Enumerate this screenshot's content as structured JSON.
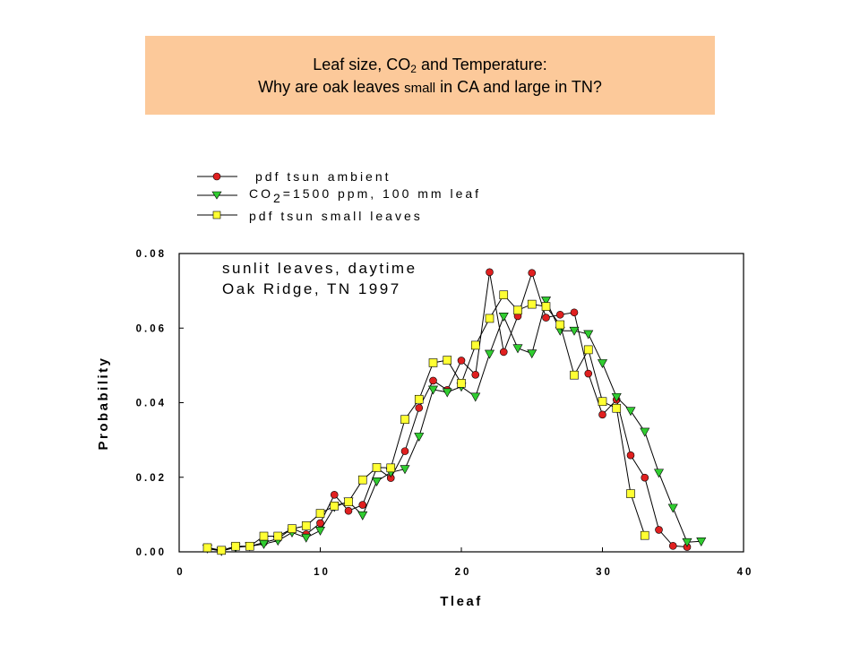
{
  "header": {
    "title_part1": "Leaf size, CO",
    "title_sub": "2",
    "title_part2": " and Temperature:",
    "subtitle_part1": "Why are oak leaves ",
    "subtitle_small": "small",
    "subtitle_part2": " in CA and large in TN?",
    "background": "#fcc99a"
  },
  "chart_data": {
    "type": "line",
    "xlabel": "Tleaf",
    "ylabel": "Probability",
    "xlim": [
      0,
      40
    ],
    "ylim": [
      0,
      0.08
    ],
    "xticks": [
      "0",
      "10",
      "20",
      "30",
      "40"
    ],
    "yticks": [
      "0.00",
      "0.02",
      "0.04",
      "0.06",
      "0.08"
    ],
    "grid": false,
    "legend_placement": "above plot",
    "annotations": [
      "sunlit leaves, daytime",
      "Oak Ridge, TN 1997"
    ],
    "series": [
      {
        "name": "pdf tsun ambient",
        "marker": "circle",
        "color": "#e02020",
        "x": [
          2,
          3,
          4,
          5,
          6,
          7,
          8,
          9,
          10,
          11,
          12,
          13,
          14,
          15,
          16,
          17,
          18,
          19,
          20,
          21,
          22,
          23,
          24,
          25,
          26,
          27,
          28,
          29,
          30,
          31,
          32,
          33,
          34,
          35,
          36
        ],
        "y": [
          0.0012,
          0.0003,
          0.0014,
          0.0015,
          0.0025,
          0.0035,
          0.0063,
          0.0047,
          0.0077,
          0.0153,
          0.011,
          0.0126,
          0.0225,
          0.0198,
          0.027,
          0.0386,
          0.0459,
          0.0434,
          0.0513,
          0.0475,
          0.075,
          0.0536,
          0.0632,
          0.0748,
          0.0628,
          0.0636,
          0.0642,
          0.0478,
          0.0368,
          0.0408,
          0.0259,
          0.0199,
          0.0059,
          0.0016,
          0.0013
        ]
      },
      {
        "name_part1": "CO",
        "name_sub": "2",
        "name_part2": "=1500 ppm, 100 mm leaf",
        "name": "CO2=1500 ppm, 100 mm leaf",
        "marker": "triangle-down",
        "color": "#30cc30",
        "x": [
          2,
          3,
          4,
          5,
          6,
          7,
          8,
          9,
          10,
          11,
          12,
          13,
          14,
          15,
          16,
          17,
          18,
          19,
          20,
          21,
          22,
          23,
          24,
          25,
          26,
          27,
          28,
          29,
          30,
          31,
          32,
          33,
          34,
          35,
          36,
          37
        ],
        "y": [
          0.0009,
          0.0002,
          0.0012,
          0.0015,
          0.0021,
          0.003,
          0.0052,
          0.0038,
          0.0057,
          0.012,
          0.0135,
          0.0098,
          0.0189,
          0.0213,
          0.0222,
          0.0309,
          0.0435,
          0.0428,
          0.0443,
          0.0416,
          0.0531,
          0.0631,
          0.0546,
          0.0532,
          0.0674,
          0.0593,
          0.0593,
          0.0584,
          0.0506,
          0.0415,
          0.0378,
          0.0322,
          0.0212,
          0.0118,
          0.0026,
          0.0028
        ]
      },
      {
        "name": "pdf tsun small leaves",
        "marker": "square",
        "color": "#ffff33",
        "x": [
          2,
          3,
          4,
          5,
          6,
          7,
          8,
          9,
          10,
          11,
          12,
          13,
          14,
          15,
          16,
          17,
          18,
          19,
          20,
          21,
          22,
          23,
          24,
          25,
          26,
          27,
          28,
          29,
          30,
          31,
          32,
          33
        ],
        "y": [
          0.0011,
          0.0004,
          0.0015,
          0.0015,
          0.0042,
          0.0042,
          0.0062,
          0.007,
          0.0103,
          0.0123,
          0.0134,
          0.0193,
          0.0226,
          0.0225,
          0.0355,
          0.0409,
          0.0507,
          0.0514,
          0.0452,
          0.0554,
          0.0626,
          0.0689,
          0.0648,
          0.0664,
          0.0658,
          0.0609,
          0.0474,
          0.0542,
          0.0403,
          0.0385,
          0.0156,
          0.0044
        ]
      }
    ]
  }
}
